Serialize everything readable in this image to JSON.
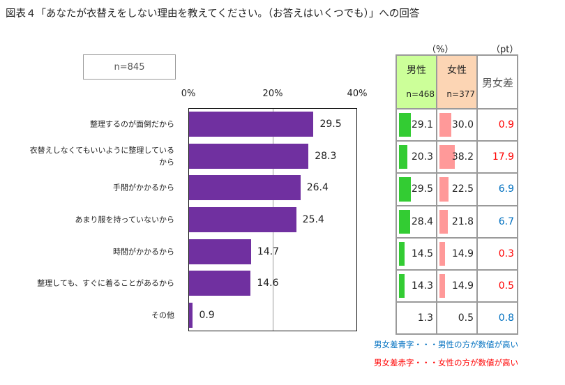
{
  "title": "図表４「あなたが衣替えをしない理由を教えてください。（お答えはいくつでも）」への回答",
  "sample": "n=845",
  "chart_data": {
    "type": "bar",
    "orientation": "horizontal",
    "xlim": [
      0,
      40
    ],
    "ticks": [
      "0%",
      "20%",
      "40%"
    ],
    "tick_values": [
      0,
      20,
      40
    ],
    "grid": true,
    "categories": [
      "整理するのが面倒だから",
      "衣替えしなくてもいいように整理しているから",
      "手間がかかるから",
      "あまり服を持っていないから",
      "時間がかかるから",
      "整理しても、すぐに着ることがあるから",
      "その他"
    ],
    "values": [
      29.5,
      28.3,
      26.4,
      25.4,
      14.7,
      14.6,
      0.9
    ],
    "labels": [
      "29.5",
      "28.3",
      "26.4",
      "25.4",
      "14.7",
      "14.6",
      "0.9"
    ],
    "bar_color": "#7030a0"
  },
  "table": {
    "unit_pct": "（%）",
    "unit_pt": "（pt）",
    "male": {
      "label": "男性",
      "n": "n=468",
      "color": "#ccff99",
      "bar_color": "#33cc33"
    },
    "female": {
      "label": "女性",
      "n": "n=377",
      "color": "#fcd5b4",
      "bar_color": "#ff9999"
    },
    "diff_label": "男女差",
    "rows": [
      {
        "male": "29.1",
        "female": "30.0",
        "diff": "0.9",
        "diff_color": "#ff0000"
      },
      {
        "male": "20.3",
        "female": "38.2",
        "diff": "17.9",
        "diff_color": "#ff0000"
      },
      {
        "male": "29.5",
        "female": "22.5",
        "diff": "6.9",
        "diff_color": "#0070c0"
      },
      {
        "male": "28.4",
        "female": "21.8",
        "diff": "6.7",
        "diff_color": "#0070c0"
      },
      {
        "male": "14.5",
        "female": "14.9",
        "diff": "0.3",
        "diff_color": "#ff0000"
      },
      {
        "male": "14.3",
        "female": "14.9",
        "diff": "0.5",
        "diff_color": "#ff0000"
      },
      {
        "male": "1.3",
        "female": "0.5",
        "diff": "0.8",
        "diff_color": "#0070c0"
      }
    ],
    "note_blue": "男女差青字・・・男性の方が数値が高い",
    "note_red": "男女差赤字・・・女性の方が数値が高い"
  }
}
